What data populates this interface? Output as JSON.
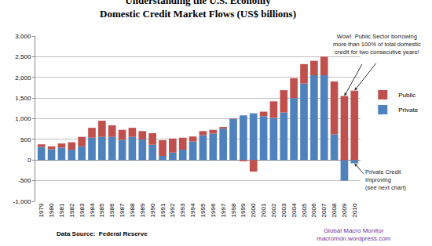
{
  "chart_data": {
    "type": "bar",
    "title": "Understanding the U.S. Economy",
    "subtitle": "Domestic Credit Market Flows (US$ billions)",
    "categories": [
      "1979",
      "1980",
      "1981",
      "1982",
      "1983",
      "1984",
      "1985",
      "1986",
      "1987",
      "1988",
      "1989",
      "1990",
      "1991",
      "1992",
      "1993",
      "1994",
      "1995",
      "1996",
      "1997",
      "1998",
      "1999",
      "2000",
      "2001",
      "2002",
      "2003",
      "2004",
      "2005",
      "2006",
      "2007",
      "2008",
      "2009",
      "2010"
    ],
    "series": [
      {
        "name": "Private",
        "color": "#4f81bd",
        "values": [
          320,
          260,
          300,
          250,
          330,
          540,
          560,
          560,
          490,
          560,
          500,
          370,
          100,
          180,
          250,
          450,
          600,
          640,
          760,
          1000,
          1080,
          1130,
          1060,
          1020,
          1150,
          1500,
          1850,
          2050,
          2050,
          620,
          -500,
          -80
        ]
      },
      {
        "name": "Public",
        "color": "#c0504d",
        "values": [
          60,
          70,
          100,
          180,
          230,
          240,
          390,
          280,
          240,
          220,
          200,
          280,
          380,
          340,
          290,
          120,
          100,
          90,
          40,
          10,
          -30,
          -280,
          110,
          400,
          540,
          480,
          470,
          350,
          450,
          1280,
          1550,
          1680
        ]
      }
    ],
    "stacked": true,
    "grid": true,
    "legend": "right",
    "ylim": [
      -1000,
      3000
    ],
    "yticks": [
      {
        "value": -1000,
        "label": "-1,000"
      },
      -500,
      0,
      500,
      {
        "value": 1000,
        "label": "1,000"
      },
      {
        "value": 1500,
        "label": "1,500"
      },
      {
        "value": 2000,
        "label": "2,000"
      },
      {
        "value": 2500,
        "label": "2,500"
      },
      {
        "value": 3000,
        "label": "3,000"
      }
    ],
    "annotations": [
      {
        "lines": [
          "Wow!  Public Sector borrowing",
          "more than 100% of total domestic",
          "credit for two consecutive years!"
        ]
      },
      {
        "lines": [
          "Private Credit",
          "Improving",
          "(see next chart)"
        ]
      },
      {
        "lines": [
          "Data Source:  Federal Reserve"
        ]
      },
      {
        "lines": [
          "Global Macro Monitor",
          "macromon.wordpress.com"
        ]
      }
    ]
  }
}
